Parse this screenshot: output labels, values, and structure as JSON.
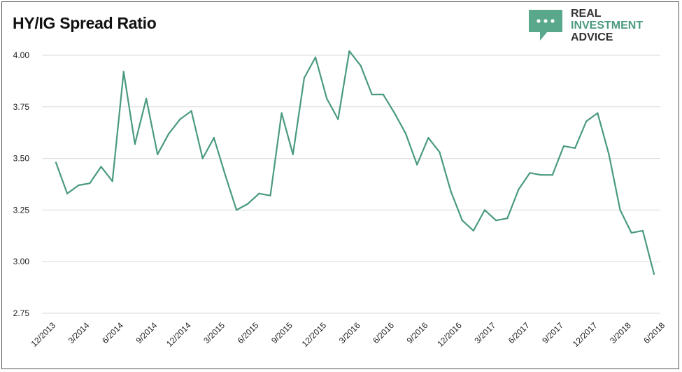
{
  "title": "HY/IG Spread Ratio",
  "logo": {
    "line1": "REAL",
    "line2": "INVESTMENT",
    "line3": "ADVICE",
    "icon": "speech-bubble-dots-icon",
    "color": "#5aa88c"
  },
  "chart_data": {
    "type": "line",
    "title": "HY/IG Spread Ratio",
    "xlabel": "",
    "ylabel": "",
    "ylim": [
      2.75,
      4.0
    ],
    "yticks": [
      "2.75",
      "3.00",
      "3.25",
      "3.50",
      "3.75",
      "4.00"
    ],
    "xtick_labels": [
      "12/2013",
      "3/2014",
      "6/2014",
      "9/2014",
      "12/2014",
      "3/2015",
      "6/2015",
      "9/2015",
      "12/2015",
      "3/2016",
      "6/2016",
      "9/2016",
      "12/2016",
      "3/2017",
      "6/2017",
      "9/2017",
      "12/2017",
      "3/2018",
      "6/2018"
    ],
    "grid": "horizontal",
    "line_color": "#4a9a80",
    "series": [
      {
        "values": [
          3.48,
          3.33,
          3.37,
          3.38,
          3.46,
          3.39,
          3.92,
          3.57,
          3.79,
          3.52,
          3.62,
          3.69,
          3.73,
          3.5,
          3.6,
          3.42,
          3.25,
          3.28,
          3.33,
          3.32,
          3.72,
          3.52,
          3.89,
          3.99,
          3.79,
          3.69,
          4.02,
          3.95,
          3.81,
          3.81,
          3.72,
          3.62,
          3.47,
          3.6,
          3.53,
          3.34,
          3.2,
          3.15,
          3.25,
          3.2,
          3.21,
          3.35,
          3.43,
          3.42,
          3.42,
          3.56,
          3.55,
          3.68,
          3.72,
          3.52,
          3.25,
          3.14,
          3.15,
          2.94
        ]
      }
    ]
  }
}
